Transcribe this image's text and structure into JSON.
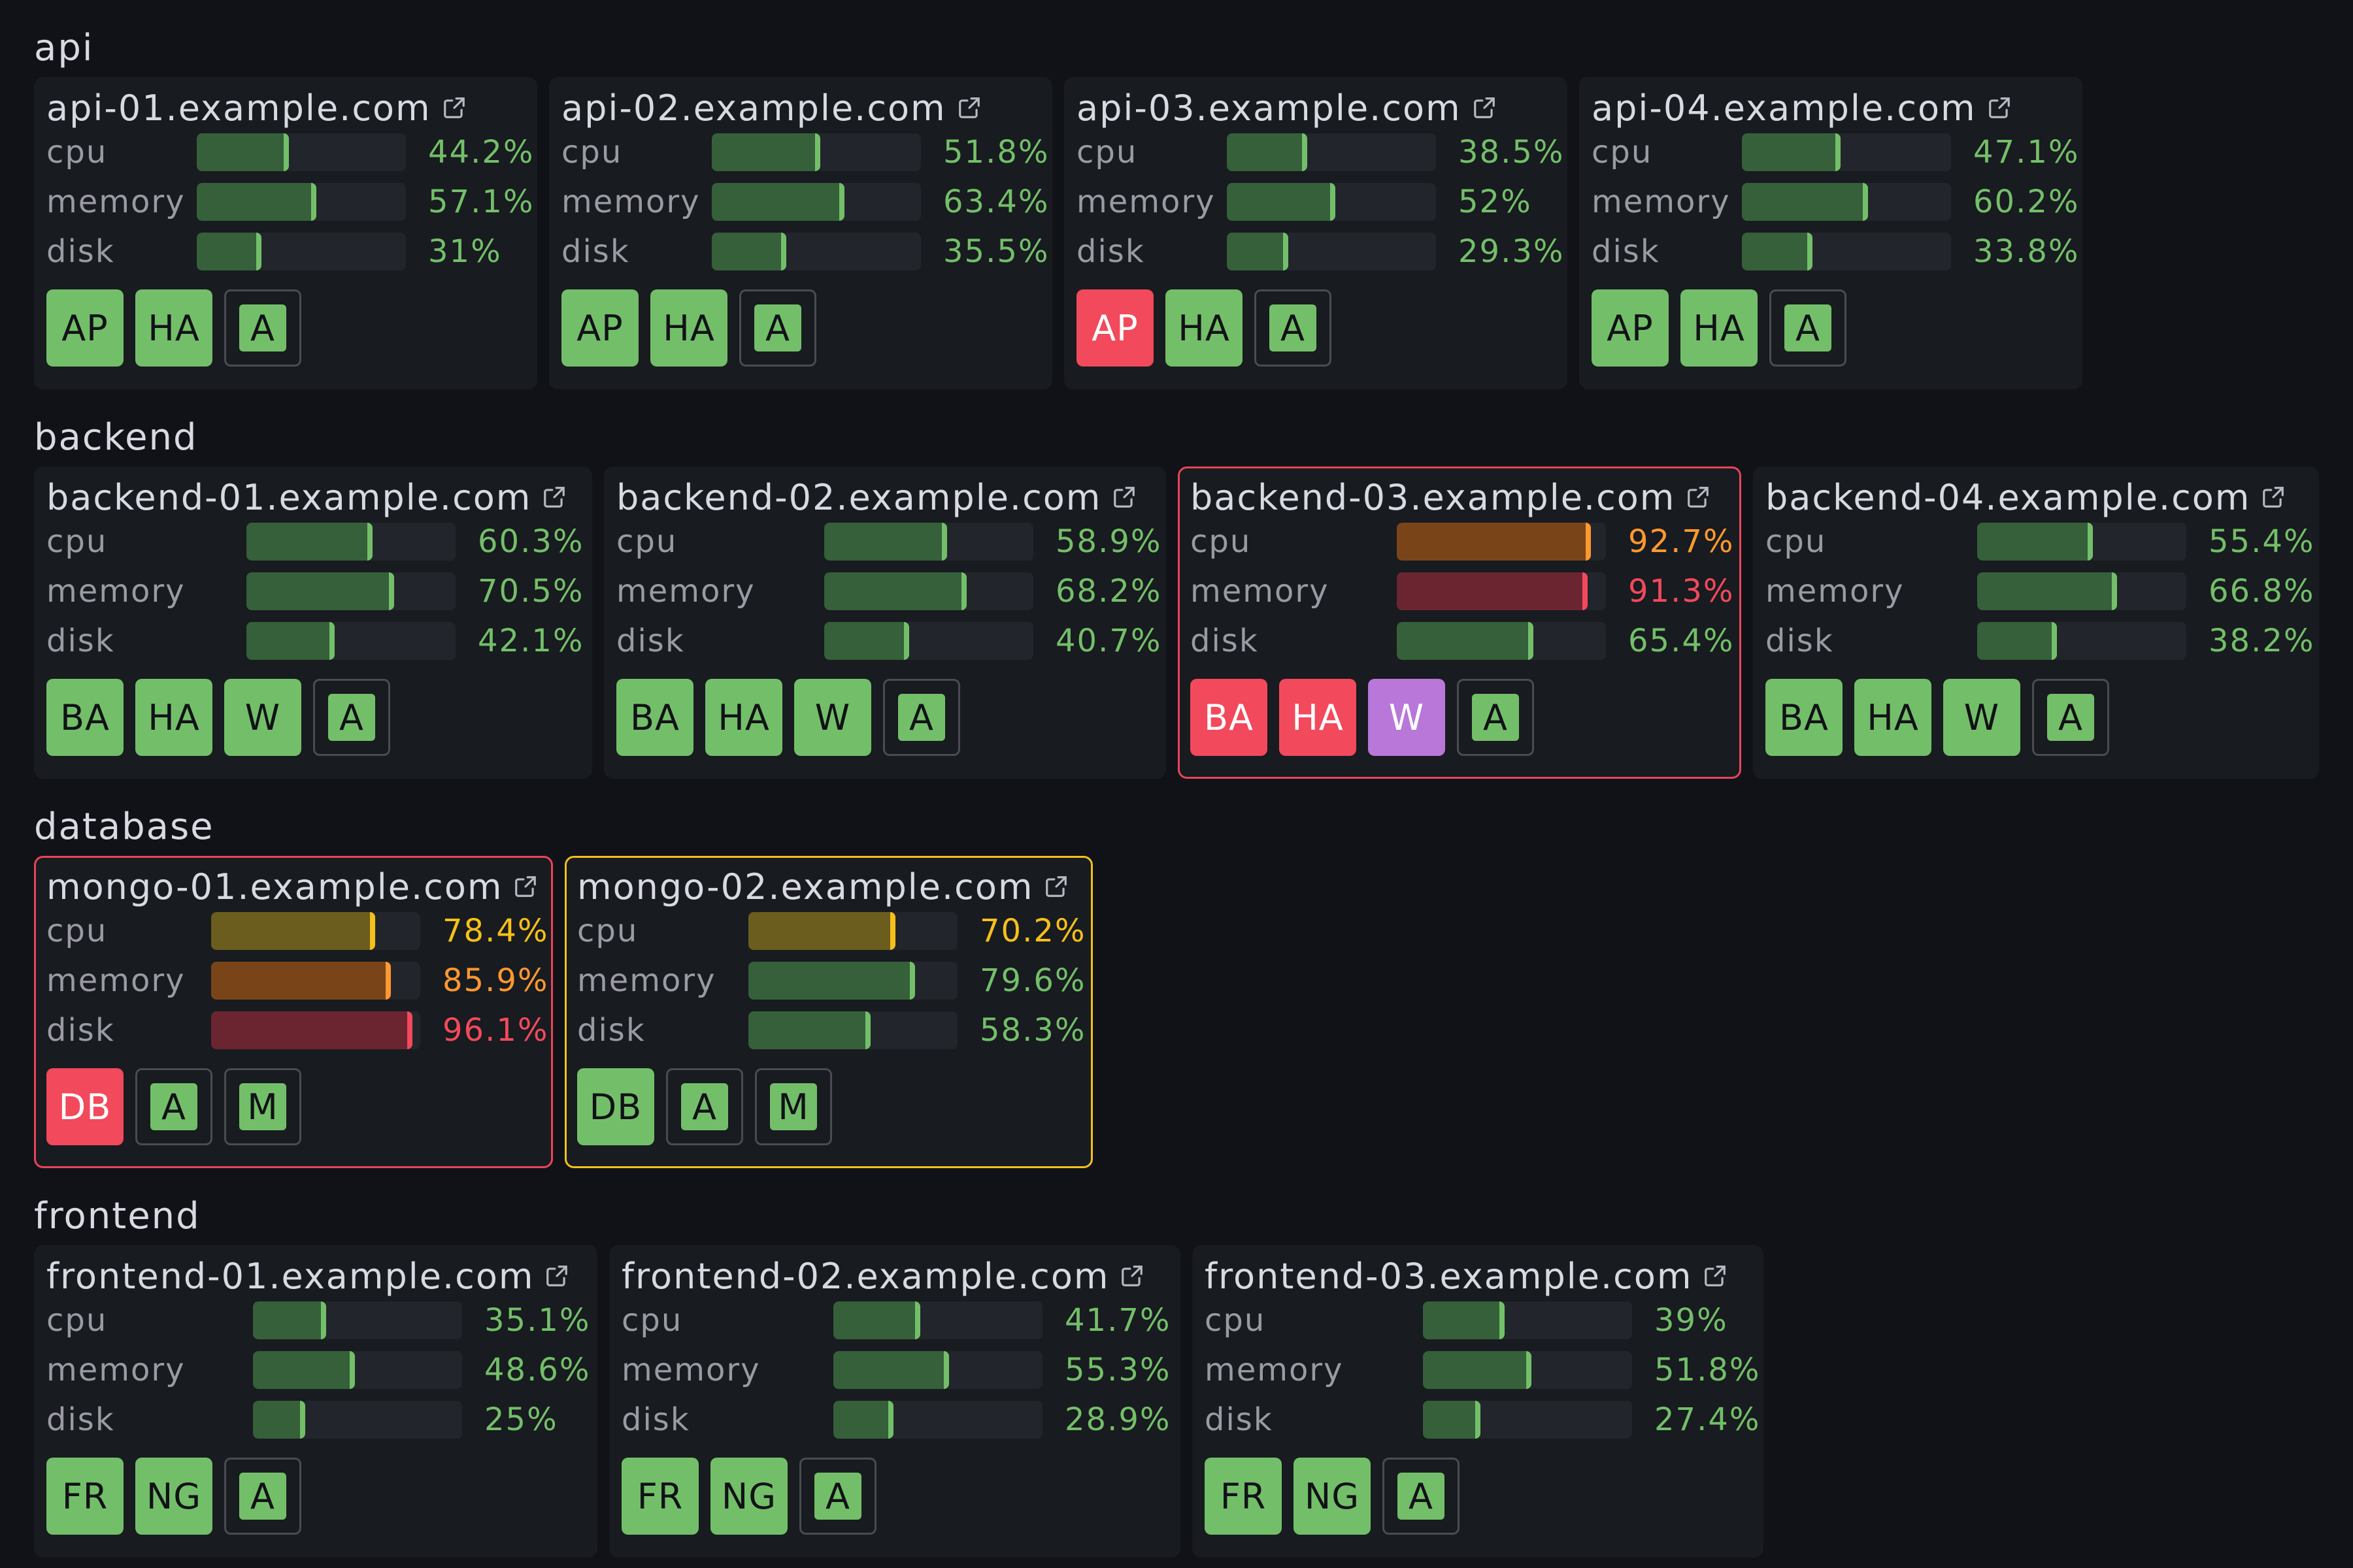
{
  "colors": {
    "ok_fill": "#35603a",
    "ok_edge": "#73bf69",
    "ok_text": "#73bf69",
    "warn_fill": "#6b5d1e",
    "warn_edge": "#f5c01a",
    "warn_text": "#f5c01a",
    "high_fill": "#7a4419",
    "high_edge": "#ff9830",
    "high_text": "#ff9830",
    "crit_fill": "#6b2531",
    "crit_edge": "#f2495c",
    "crit_text": "#f2495c"
  },
  "metric_labels": {
    "cpu": "cpu",
    "memory": "memory",
    "disk": "disk"
  },
  "groups": [
    {
      "name": "api",
      "hosts": [
        {
          "host": "api-01.example.com",
          "state": "normal",
          "cpu": {
            "value": "44.2%",
            "pct": 44.2,
            "level": "ok"
          },
          "memory": {
            "value": "57.1%",
            "pct": 57.1,
            "level": "ok"
          },
          "disk": {
            "value": "31%",
            "pct": 31,
            "level": "ok"
          },
          "badges": [
            {
              "label": "AP",
              "status": "ok"
            },
            {
              "label": "HA",
              "status": "ok"
            },
            {
              "label": "A",
              "status": "outline"
            }
          ]
        },
        {
          "host": "api-02.example.com",
          "state": "normal",
          "cpu": {
            "value": "51.8%",
            "pct": 51.8,
            "level": "ok"
          },
          "memory": {
            "value": "63.4%",
            "pct": 63.4,
            "level": "ok"
          },
          "disk": {
            "value": "35.5%",
            "pct": 35.5,
            "level": "ok"
          },
          "badges": [
            {
              "label": "AP",
              "status": "ok"
            },
            {
              "label": "HA",
              "status": "ok"
            },
            {
              "label": "A",
              "status": "outline"
            }
          ]
        },
        {
          "host": "api-03.example.com",
          "state": "normal",
          "cpu": {
            "value": "38.5%",
            "pct": 38.5,
            "level": "ok"
          },
          "memory": {
            "value": "52%",
            "pct": 52,
            "level": "ok"
          },
          "disk": {
            "value": "29.3%",
            "pct": 29.3,
            "level": "ok"
          },
          "badges": [
            {
              "label": "AP",
              "status": "crit"
            },
            {
              "label": "HA",
              "status": "ok"
            },
            {
              "label": "A",
              "status": "outline"
            }
          ]
        },
        {
          "host": "api-04.example.com",
          "state": "normal",
          "cpu": {
            "value": "47.1%",
            "pct": 47.1,
            "level": "ok"
          },
          "memory": {
            "value": "60.2%",
            "pct": 60.2,
            "level": "ok"
          },
          "disk": {
            "value": "33.8%",
            "pct": 33.8,
            "level": "ok"
          },
          "badges": [
            {
              "label": "AP",
              "status": "ok"
            },
            {
              "label": "HA",
              "status": "ok"
            },
            {
              "label": "A",
              "status": "outline"
            }
          ]
        }
      ]
    },
    {
      "name": "backend",
      "hosts": [
        {
          "host": "backend-01.example.com",
          "state": "normal",
          "cpu": {
            "value": "60.3%",
            "pct": 60.3,
            "level": "ok"
          },
          "memory": {
            "value": "70.5%",
            "pct": 70.5,
            "level": "ok"
          },
          "disk": {
            "value": "42.1%",
            "pct": 42.1,
            "level": "ok"
          },
          "badges": [
            {
              "label": "BA",
              "status": "ok"
            },
            {
              "label": "HA",
              "status": "ok"
            },
            {
              "label": "W",
              "status": "ok"
            },
            {
              "label": "A",
              "status": "outline"
            }
          ]
        },
        {
          "host": "backend-02.example.com",
          "state": "normal",
          "cpu": {
            "value": "58.9%",
            "pct": 58.9,
            "level": "ok"
          },
          "memory": {
            "value": "68.2%",
            "pct": 68.2,
            "level": "ok"
          },
          "disk": {
            "value": "40.7%",
            "pct": 40.7,
            "level": "ok"
          },
          "badges": [
            {
              "label": "BA",
              "status": "ok"
            },
            {
              "label": "HA",
              "status": "ok"
            },
            {
              "label": "W",
              "status": "ok"
            },
            {
              "label": "A",
              "status": "outline"
            }
          ]
        },
        {
          "host": "backend-03.example.com",
          "state": "critical",
          "cpu": {
            "value": "92.7%",
            "pct": 92.7,
            "level": "high"
          },
          "memory": {
            "value": "91.3%",
            "pct": 91.3,
            "level": "crit"
          },
          "disk": {
            "value": "65.4%",
            "pct": 65.4,
            "level": "ok"
          },
          "badges": [
            {
              "label": "BA",
              "status": "crit"
            },
            {
              "label": "HA",
              "status": "crit"
            },
            {
              "label": "W",
              "status": "warn"
            },
            {
              "label": "A",
              "status": "outline"
            }
          ]
        },
        {
          "host": "backend-04.example.com",
          "state": "normal",
          "cpu": {
            "value": "55.4%",
            "pct": 55.4,
            "level": "ok"
          },
          "memory": {
            "value": "66.8%",
            "pct": 66.8,
            "level": "ok"
          },
          "disk": {
            "value": "38.2%",
            "pct": 38.2,
            "level": "ok"
          },
          "badges": [
            {
              "label": "BA",
              "status": "ok"
            },
            {
              "label": "HA",
              "status": "ok"
            },
            {
              "label": "W",
              "status": "ok"
            },
            {
              "label": "A",
              "status": "outline"
            }
          ]
        }
      ]
    },
    {
      "name": "database",
      "hosts": [
        {
          "host": "mongo-01.example.com",
          "state": "critical",
          "cpu": {
            "value": "78.4%",
            "pct": 78.4,
            "level": "warn"
          },
          "memory": {
            "value": "85.9%",
            "pct": 85.9,
            "level": "high"
          },
          "disk": {
            "value": "96.1%",
            "pct": 96.1,
            "level": "crit"
          },
          "badges": [
            {
              "label": "DB",
              "status": "crit"
            },
            {
              "label": "A",
              "status": "outline"
            },
            {
              "label": "M",
              "status": "outline"
            }
          ]
        },
        {
          "host": "mongo-02.example.com",
          "state": "warning",
          "cpu": {
            "value": "70.2%",
            "pct": 70.2,
            "level": "warn"
          },
          "memory": {
            "value": "79.6%",
            "pct": 79.6,
            "level": "ok"
          },
          "disk": {
            "value": "58.3%",
            "pct": 58.3,
            "level": "ok"
          },
          "badges": [
            {
              "label": "DB",
              "status": "ok"
            },
            {
              "label": "A",
              "status": "outline"
            },
            {
              "label": "M",
              "status": "outline"
            }
          ]
        }
      ]
    },
    {
      "name": "frontend",
      "hosts": [
        {
          "host": "frontend-01.example.com",
          "state": "normal",
          "cpu": {
            "value": "35.1%",
            "pct": 35.1,
            "level": "ok"
          },
          "memory": {
            "value": "48.6%",
            "pct": 48.6,
            "level": "ok"
          },
          "disk": {
            "value": "25%",
            "pct": 25,
            "level": "ok"
          },
          "badges": [
            {
              "label": "FR",
              "status": "ok"
            },
            {
              "label": "NG",
              "status": "ok"
            },
            {
              "label": "A",
              "status": "outline"
            }
          ]
        },
        {
          "host": "frontend-02.example.com",
          "state": "normal",
          "cpu": {
            "value": "41.7%",
            "pct": 41.7,
            "level": "ok"
          },
          "memory": {
            "value": "55.3%",
            "pct": 55.3,
            "level": "ok"
          },
          "disk": {
            "value": "28.9%",
            "pct": 28.9,
            "level": "ok"
          },
          "badges": [
            {
              "label": "FR",
              "status": "ok"
            },
            {
              "label": "NG",
              "status": "ok"
            },
            {
              "label": "A",
              "status": "outline"
            }
          ]
        },
        {
          "host": "frontend-03.example.com",
          "state": "normal",
          "cpu": {
            "value": "39%",
            "pct": 39,
            "level": "ok"
          },
          "memory": {
            "value": "51.8%",
            "pct": 51.8,
            "level": "ok"
          },
          "disk": {
            "value": "27.4%",
            "pct": 27.4,
            "level": "ok"
          },
          "badges": [
            {
              "label": "FR",
              "status": "ok"
            },
            {
              "label": "NG",
              "status": "ok"
            },
            {
              "label": "A",
              "status": "outline"
            }
          ]
        }
      ]
    }
  ]
}
